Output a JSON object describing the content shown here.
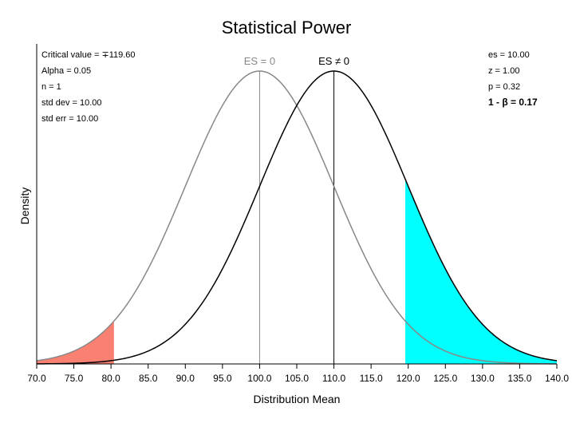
{
  "chart_data": {
    "type": "area",
    "title": "Statistical Power",
    "xlabel": "Distribution Mean",
    "ylabel": "Density",
    "xlim": [
      70,
      140
    ],
    "xticks": [
      "70.0",
      "75.0",
      "80.0",
      "85.0",
      "90.0",
      "95.0",
      "100.0",
      "105.0",
      "110.0",
      "115.0",
      "120.0",
      "125.0",
      "130.0",
      "135.0",
      "140.0"
    ],
    "series": [
      {
        "name": "ES = 0",
        "mean": 100,
        "sd": 10,
        "color": "#888888"
      },
      {
        "name": "ES ≠ 0",
        "mean": 110,
        "sd": 10,
        "color": "#000000"
      }
    ],
    "critical_values": [
      80.4,
      119.6
    ],
    "shading": {
      "alpha_color": "#fa8072",
      "power_color": "#00ffff"
    },
    "left_stats": [
      "Critical value  = ∓119.60",
      "Alpha = 0.05",
      "n = 1",
      "std dev = 10.00",
      "std err = 10.00"
    ],
    "right_stats": [
      "es = 10.00",
      "z = 1.00",
      "p = 0.32"
    ],
    "power_label": "1 - β = 0.17"
  }
}
